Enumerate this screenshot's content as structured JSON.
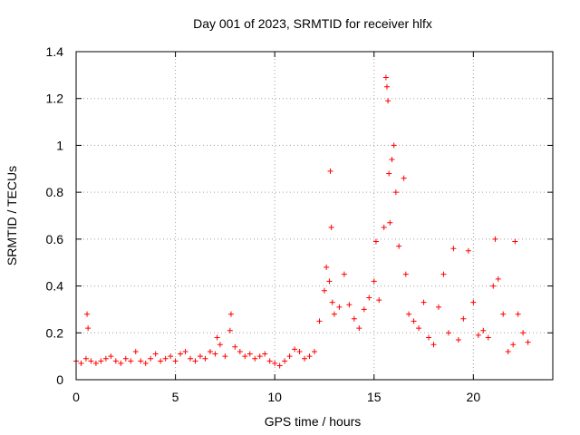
{
  "chart_data": {
    "type": "scatter",
    "title": "Day 001 of 2023, SRMTID for receiver hlfx",
    "xlabel": "GPS time / hours",
    "ylabel": "SRMTID / TECUs",
    "xlim": [
      0,
      24
    ],
    "ylim": [
      0,
      1.4
    ],
    "x_ticks": [
      0,
      5,
      10,
      15,
      20
    ],
    "y_ticks": [
      0,
      0.2,
      0.4,
      0.6,
      0.8,
      1,
      1.2,
      1.4
    ],
    "x_tick_labels": [
      "0",
      "5",
      "10",
      "15",
      "20"
    ],
    "y_tick_labels": [
      "0",
      "0.2",
      "0.4",
      "0.6",
      "0.8",
      "1",
      "1.2",
      "1.4"
    ],
    "grid": true,
    "marker": "+",
    "series": [
      {
        "name": "SRMTID",
        "color": "#ff0000",
        "x": [
          0.0,
          0.25,
          0.5,
          0.55,
          0.6,
          0.75,
          1.0,
          1.25,
          1.5,
          1.75,
          2.0,
          2.25,
          2.5,
          2.75,
          3.0,
          3.25,
          3.5,
          3.75,
          4.0,
          4.25,
          4.5,
          4.75,
          5.0,
          5.25,
          5.5,
          5.75,
          6.0,
          6.25,
          6.5,
          6.75,
          7.0,
          7.1,
          7.25,
          7.5,
          7.75,
          7.8,
          8.0,
          8.25,
          8.5,
          8.75,
          9.0,
          9.25,
          9.5,
          9.75,
          10.0,
          10.25,
          10.5,
          10.75,
          11.0,
          11.25,
          11.5,
          11.75,
          12.0,
          12.25,
          12.5,
          12.6,
          12.75,
          12.8,
          12.85,
          12.9,
          13.0,
          13.25,
          13.5,
          13.75,
          14.0,
          14.25,
          14.5,
          14.75,
          15.0,
          15.1,
          15.25,
          15.5,
          15.6,
          15.65,
          15.7,
          15.75,
          15.8,
          15.9,
          16.0,
          16.1,
          16.25,
          16.5,
          16.6,
          16.75,
          17.0,
          17.25,
          17.5,
          17.75,
          18.0,
          18.25,
          18.5,
          18.75,
          19.0,
          19.25,
          19.5,
          19.75,
          20.0,
          20.25,
          20.5,
          20.75,
          21.0,
          21.1,
          21.25,
          21.5,
          21.75,
          22.0,
          22.1,
          22.25,
          22.5,
          22.75
        ],
        "y": [
          0.08,
          0.07,
          0.09,
          0.28,
          0.22,
          0.08,
          0.07,
          0.08,
          0.09,
          0.1,
          0.08,
          0.07,
          0.09,
          0.08,
          0.12,
          0.08,
          0.07,
          0.09,
          0.11,
          0.08,
          0.09,
          0.1,
          0.08,
          0.11,
          0.12,
          0.09,
          0.08,
          0.1,
          0.09,
          0.12,
          0.11,
          0.18,
          0.15,
          0.1,
          0.21,
          0.28,
          0.14,
          0.12,
          0.1,
          0.11,
          0.09,
          0.1,
          0.11,
          0.08,
          0.07,
          0.06,
          0.08,
          0.1,
          0.13,
          0.12,
          0.09,
          0.1,
          0.12,
          0.25,
          0.38,
          0.48,
          0.42,
          0.89,
          0.65,
          0.33,
          0.28,
          0.31,
          0.45,
          0.32,
          0.26,
          0.22,
          0.3,
          0.35,
          0.42,
          0.59,
          0.34,
          0.65,
          1.29,
          1.25,
          1.19,
          0.88,
          0.67,
          0.94,
          1.0,
          0.8,
          0.57,
          0.86,
          0.45,
          0.28,
          0.25,
          0.22,
          0.33,
          0.18,
          0.15,
          0.31,
          0.45,
          0.2,
          0.56,
          0.17,
          0.26,
          0.55,
          0.33,
          0.19,
          0.21,
          0.18,
          0.4,
          0.6,
          0.43,
          0.28,
          0.12,
          0.15,
          0.59,
          0.28,
          0.2,
          0.16
        ]
      }
    ]
  }
}
